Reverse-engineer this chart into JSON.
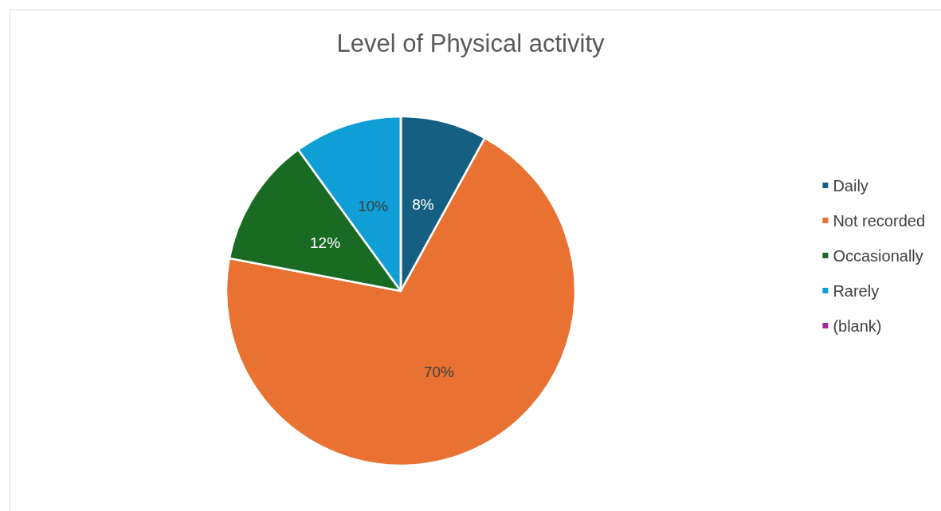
{
  "chart_data": {
    "type": "pie",
    "title": "Level of Physical activity",
    "categories": [
      "Daily",
      "Not recorded",
      "Occasionally",
      "Rarely",
      "(blank)"
    ],
    "values": [
      8,
      70,
      12,
      10,
      0
    ],
    "colors": [
      "#156082",
      "#e97132",
      "#196b24",
      "#0f9ed5",
      "#a02b93"
    ],
    "value_labels": [
      "8%",
      "70%",
      "12%",
      "10%",
      null
    ],
    "legend": "right"
  }
}
